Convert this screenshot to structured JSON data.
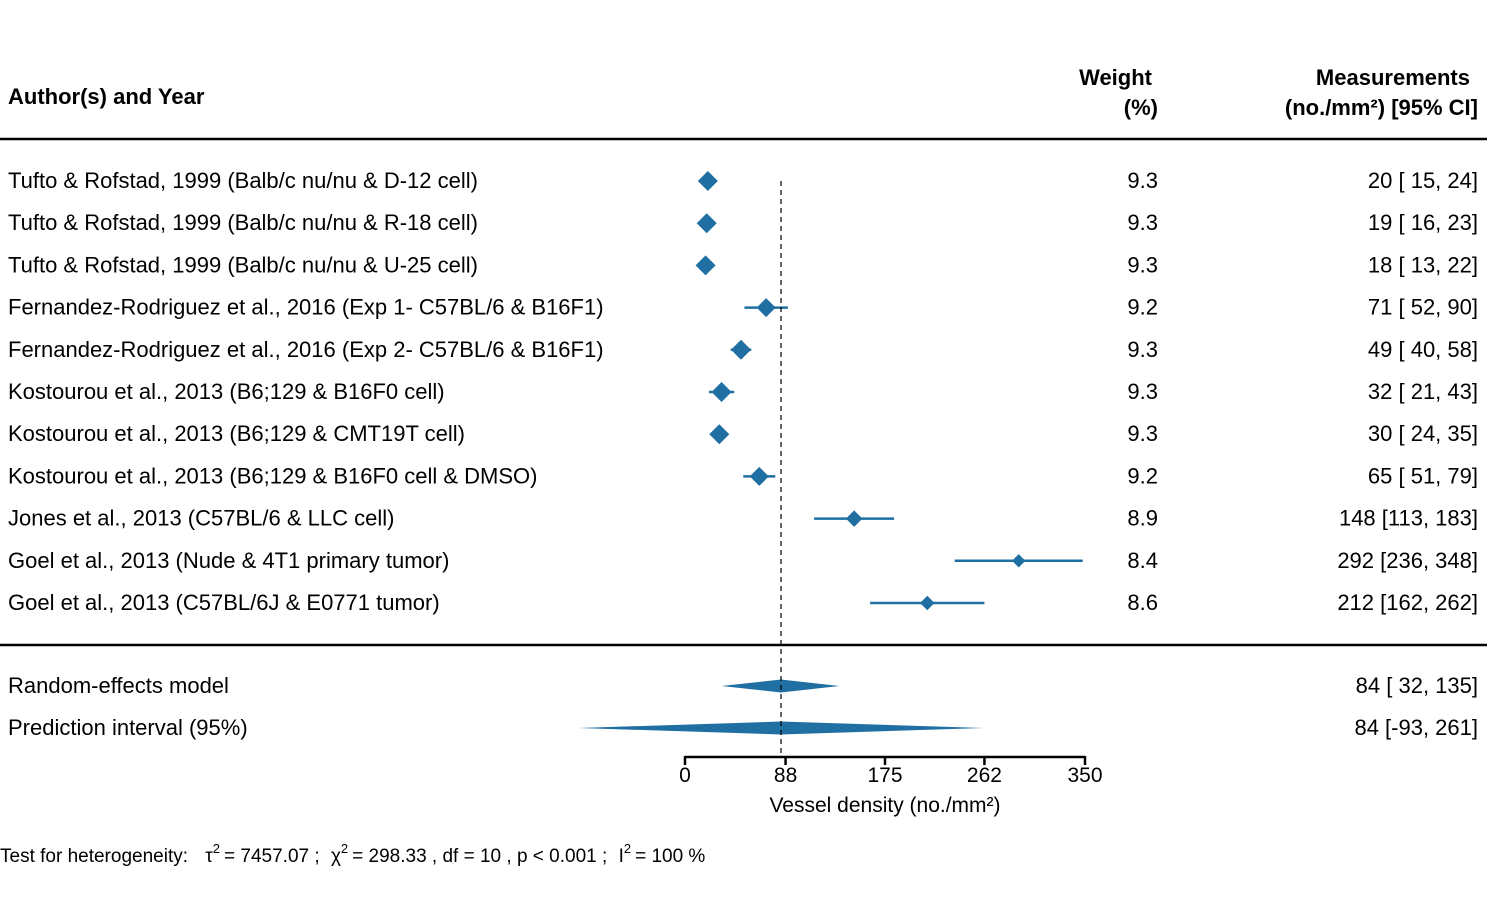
{
  "headers": {
    "study": "Author(s) and Year",
    "weight_line1": "Weight",
    "weight_line2": "(%)",
    "meas_line1": "Measurements",
    "meas_line2": "(no./mm²) [95% CI]"
  },
  "colors": {
    "marker": "#1f6fa3",
    "line": "#000000"
  },
  "chart_data": {
    "type": "forest",
    "xlabel": "Vessel density (no./mm²)",
    "xlim": [
      0,
      350
    ],
    "xticks": [
      0,
      88,
      175,
      262,
      350
    ],
    "reference_line": 84,
    "studies": [
      {
        "label": "Tufto & Rofstad, 1999 (Balb/c nu/nu & D-12 cell)",
        "est": 20,
        "lo": 15,
        "hi": 24,
        "weight": 9.3,
        "weight_text": "9.3",
        "ci_text": "20 [ 15,  24]"
      },
      {
        "label": "Tufto & Rofstad, 1999 (Balb/c nu/nu & R-18 cell)",
        "est": 19,
        "lo": 16,
        "hi": 23,
        "weight": 9.3,
        "weight_text": "9.3",
        "ci_text": "19 [ 16,  23]"
      },
      {
        "label": "Tufto & Rofstad, 1999 (Balb/c nu/nu & U-25 cell)",
        "est": 18,
        "lo": 13,
        "hi": 22,
        "weight": 9.3,
        "weight_text": "9.3",
        "ci_text": "18 [ 13,  22]"
      },
      {
        "label": "Fernandez-Rodriguez et al., 2016 (Exp 1- C57BL/6 & B16F1)",
        "est": 71,
        "lo": 52,
        "hi": 90,
        "weight": 9.2,
        "weight_text": "9.2",
        "ci_text": "71 [ 52,  90]"
      },
      {
        "label": "Fernandez-Rodriguez et al., 2016 (Exp 2- C57BL/6 & B16F1)",
        "est": 49,
        "lo": 40,
        "hi": 58,
        "weight": 9.3,
        "weight_text": "9.3",
        "ci_text": "49 [ 40,  58]"
      },
      {
        "label": "Kostourou et al., 2013 (B6;129 & B16F0 cell)",
        "est": 32,
        "lo": 21,
        "hi": 43,
        "weight": 9.3,
        "weight_text": "9.3",
        "ci_text": "32 [ 21,  43]"
      },
      {
        "label": "Kostourou et al., 2013 (B6;129 & CMT19T cell)",
        "est": 30,
        "lo": 24,
        "hi": 35,
        "weight": 9.3,
        "weight_text": "9.3",
        "ci_text": "30 [ 24,  35]"
      },
      {
        "label": "Kostourou et al., 2013 (B6;129 & B16F0 cell & DMSO)",
        "est": 65,
        "lo": 51,
        "hi": 79,
        "weight": 9.2,
        "weight_text": "9.2",
        "ci_text": "65 [ 51,  79]"
      },
      {
        "label": "Jones et al., 2013 (C57BL/6 & LLC cell)",
        "est": 148,
        "lo": 113,
        "hi": 183,
        "weight": 8.9,
        "weight_text": "8.9",
        "ci_text": "148 [113, 183]"
      },
      {
        "label": "Goel et al., 2013 (Nude & 4T1 primary tumor)",
        "est": 292,
        "lo": 236,
        "hi": 348,
        "weight": 8.4,
        "weight_text": "8.4",
        "ci_text": "292 [236, 348]"
      },
      {
        "label": "Goel et al., 2013 (C57BL/6J & E0771 tumor)",
        "est": 212,
        "lo": 162,
        "hi": 262,
        "weight": 8.6,
        "weight_text": "8.6",
        "ci_text": "212 [162, 262]"
      }
    ],
    "summary": [
      {
        "label": "Random-effects model",
        "est": 84,
        "lo": 32,
        "hi": 135,
        "ci_text": "84 [ 32, 135]"
      },
      {
        "label": "Prediction interval (95%)",
        "est": 84,
        "lo": -93,
        "hi": 261,
        "ci_text": "84 [-93, 261]"
      }
    ],
    "footnote": {
      "prefix": "Test for heterogeneity:",
      "tau_sym": "τ",
      "tau_value": "= 7457.07 ;",
      "chi_sym": "χ",
      "chi_value": "= 298.33 , df = 10 ,  p < 0.001 ;",
      "i_sym": "I",
      "i_value": "= 100 %",
      "sup": "2"
    }
  }
}
